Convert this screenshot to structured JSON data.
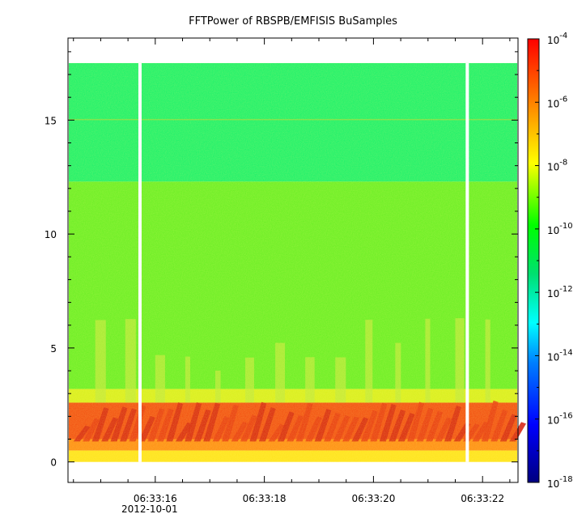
{
  "chart_data": {
    "type": "heatmap",
    "title": "FFTPower of RBSPB/EMFISIS  BuSamples",
    "xlabel": "",
    "ylabel": "",
    "x_ticks": [
      {
        "label": "06:33:16",
        "sublabel": "2012-10-01",
        "t": 16
      },
      {
        "label": "06:33:18",
        "sublabel": "",
        "t": 18
      },
      {
        "label": "06:33:20",
        "sublabel": "",
        "t": 20
      },
      {
        "label": "06:33:22",
        "sublabel": "",
        "t": 22
      }
    ],
    "x_range_seconds": [
      14.4,
      22.65
    ],
    "y_range": [
      -0.9,
      18.6
    ],
    "y_ticks": [
      0,
      5,
      10,
      15
    ],
    "y_data_max": 17.5,
    "data_gaps_seconds": [
      15.72,
      21.72
    ],
    "colorbar": {
      "scale": "log",
      "range_exponent": [
        -18,
        -4
      ],
      "tick_exponents": [
        -4,
        -6,
        -8,
        -10,
        -12,
        -14,
        -16,
        -18
      ],
      "tick_base": "10",
      "colors": [
        "#00007f",
        "#0000ff",
        "#007fff",
        "#00ffff",
        "#00e070",
        "#00ff00",
        "#ffff00",
        "#ff7f00",
        "#ff0000"
      ]
    },
    "grid": false
  }
}
